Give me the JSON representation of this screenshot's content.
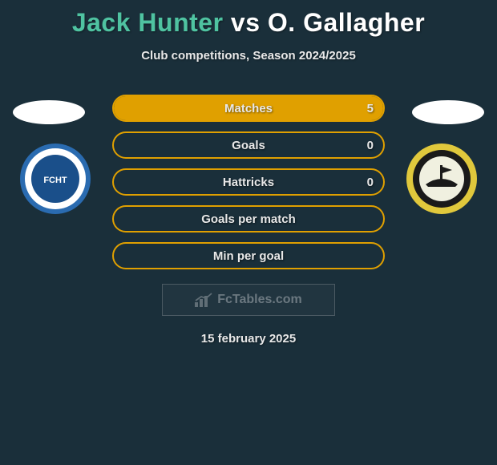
{
  "background_color": "#1a2f3a",
  "title": {
    "player1": "Jack Hunter",
    "vs": "vs",
    "player2": "O. Gallagher",
    "player1_color": "#4fc3a1",
    "rest_color": "#ffffff",
    "fontsize": 32
  },
  "subtitle": "Club competitions, Season 2024/2025",
  "marker_left_color": "#ffffff",
  "marker_right_color": "#ffffff",
  "badges": {
    "left": {
      "outer_ring": "#2a6bb0",
      "inner_ring": "#ffffff",
      "center": "#1a4f8a",
      "name": "halifax-town-badge"
    },
    "right": {
      "outer_ring": "#e0c83c",
      "inner_ring": "#1a1a1a",
      "center": "#f0f0e0",
      "name": "boston-united-badge"
    }
  },
  "stats": {
    "bar_border_color": "#e0a000",
    "text_color": "#e8e8e8",
    "rows": [
      {
        "label": "Matches",
        "left": "",
        "right": "5",
        "right_fill_color": "#e0a000",
        "right_fill_pct": 100
      },
      {
        "label": "Goals",
        "left": "",
        "right": "0",
        "right_fill_color": "",
        "right_fill_pct": 0
      },
      {
        "label": "Hattricks",
        "left": "",
        "right": "0",
        "right_fill_color": "",
        "right_fill_pct": 0
      },
      {
        "label": "Goals per match",
        "left": "",
        "right": "",
        "right_fill_color": "",
        "right_fill_pct": 0
      },
      {
        "label": "Min per goal",
        "left": "",
        "right": "",
        "right_fill_color": "",
        "right_fill_pct": 0
      }
    ]
  },
  "watermark": "FcTables.com",
  "date": "15 february 2025"
}
